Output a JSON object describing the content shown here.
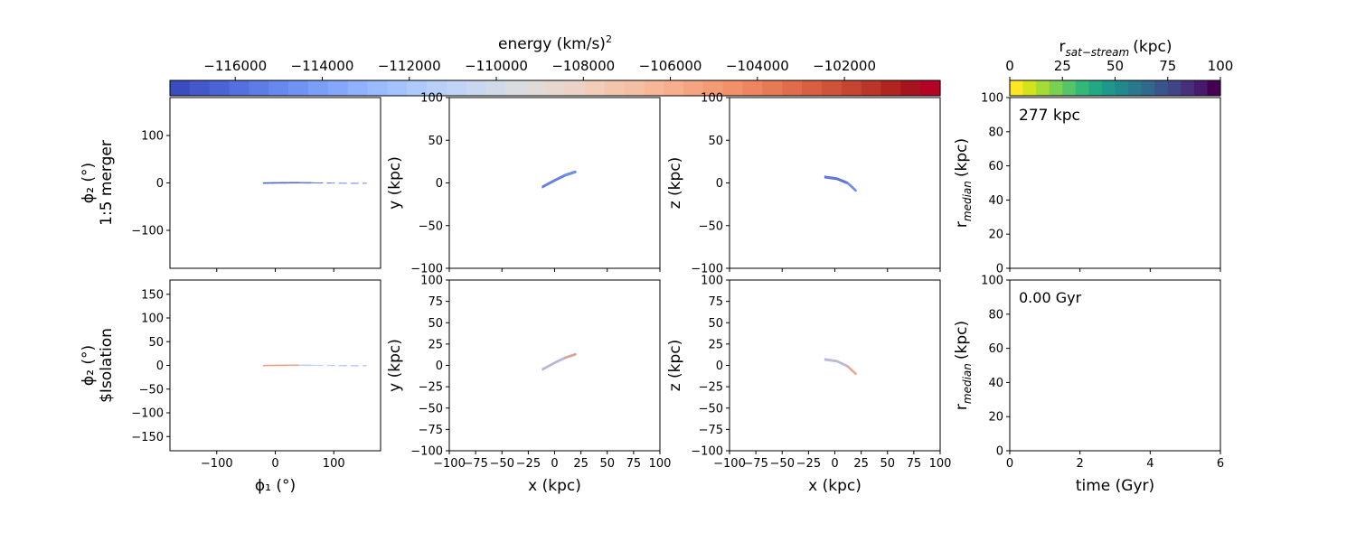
{
  "figure": {
    "panel_ylabels": {
      "top_row_group": "1:5 merger",
      "bottom_row_group": "$Isolation"
    }
  },
  "colorbars": {
    "energy": {
      "label": "energy (km/s)",
      "label_sup": "2",
      "range": [
        -117500,
        -99800
      ],
      "ticks": [
        -116000,
        -114000,
        -112000,
        -110000,
        -108000,
        -106000,
        -104000,
        -102000
      ],
      "tick_labels": [
        "−116000",
        "−114000",
        "−112000",
        "−110000",
        "−108000",
        "−106000",
        "−104000",
        "−102000"
      ],
      "colors": [
        "#3b4cc0",
        "#4358cb",
        "#4b64d5",
        "#5470de",
        "#5d7ce6",
        "#6788ee",
        "#7093f3",
        "#7b9ff9",
        "#84a7fc",
        "#8fb1fe",
        "#9abbff",
        "#a3c2fe",
        "#aec9fc",
        "#b7cff9",
        "#c0d4f5",
        "#c9d7f0",
        "#d1dae9",
        "#d9dce1",
        "#e0dbd8",
        "#e6d7cf",
        "#ecd3c5",
        "#f1cdba",
        "#f4c5ad",
        "#f5bfa3",
        "#f6b799",
        "#f6ae8d",
        "#f5a481",
        "#f39b74",
        "#f19069",
        "#ec8560",
        "#e67a55",
        "#e06c4b",
        "#d85f42",
        "#cf5339",
        "#c54530",
        "#bb3628",
        "#b1241f",
        "#a71420",
        "#b40426"
      ]
    },
    "distance": {
      "label": "r",
      "label_sub": "sat−stream",
      "label_unit": "(kpc)",
      "range": [
        0,
        100
      ],
      "ticks": [
        0,
        25,
        50,
        75,
        100
      ],
      "tick_labels": [
        "0",
        "25",
        "50",
        "75",
        "100"
      ],
      "colors": [
        "#fde725",
        "#d2e21b",
        "#a5db36",
        "#7ad151",
        "#54c568",
        "#35b779",
        "#22a884",
        "#1f988b",
        "#23888e",
        "#2a788e",
        "#31688e",
        "#39568c",
        "#414487",
        "#472f7d",
        "#481a6c",
        "#440154"
      ]
    }
  },
  "chart_data": [
    {
      "id": "sky_merger",
      "type": "scatter",
      "xlabel": "",
      "ylabel": "ϕ₂ (°)",
      "ylabel_extra": "1:5 merger",
      "xlim": [
        -180,
        180
      ],
      "ylim": [
        -180,
        180
      ],
      "xticks": [
        -100,
        0,
        100
      ],
      "yticks": [
        -100,
        0,
        100
      ],
      "show_xticklabels": false,
      "stream": {
        "kind": "sky",
        "x_range": [
          -20,
          150
        ],
        "colors": [
          "#4a63d3",
          "#5a78e4",
          "#6d8ff2"
        ]
      }
    },
    {
      "id": "xy_merger",
      "type": "scatter",
      "xlabel": "",
      "ylabel": "y (kpc)",
      "xlim": [
        -100,
        100
      ],
      "ylim": [
        -100,
        100
      ],
      "xticks": [
        -100,
        -50,
        0,
        50,
        100
      ],
      "yticks": [
        -100,
        -50,
        0,
        50,
        100
      ],
      "show_xticklabels": false,
      "stream": {
        "kind": "curve",
        "points": [
          [
            -12,
            -5
          ],
          [
            0,
            3
          ],
          [
            10,
            9
          ],
          [
            20,
            13
          ]
        ],
        "colors": [
          "#4a63d3",
          "#6d8ff2"
        ]
      }
    },
    {
      "id": "xz_merger",
      "type": "scatter",
      "xlabel": "",
      "ylabel": "z (kpc)",
      "xlim": [
        -100,
        100
      ],
      "ylim": [
        -100,
        100
      ],
      "xticks": [
        -100,
        -50,
        0,
        50,
        100
      ],
      "yticks": [
        -100,
        -50,
        0,
        50,
        100
      ],
      "show_xticklabels": false,
      "stream": {
        "kind": "curve",
        "points": [
          [
            -10,
            7
          ],
          [
            2,
            5
          ],
          [
            12,
            0
          ],
          [
            20,
            -9
          ]
        ],
        "colors": [
          "#3b4cc0",
          "#6d8ff2"
        ]
      }
    },
    {
      "id": "rmed_merger",
      "type": "line",
      "xlabel": "",
      "ylabel": "r",
      "ylabel_sub": "median",
      "ylabel_unit": "(kpc)",
      "xlim": [
        0,
        6
      ],
      "ylim": [
        0,
        100
      ],
      "xticks": [
        0,
        2,
        4,
        6
      ],
      "yticks": [
        0,
        20,
        40,
        60,
        80,
        100
      ],
      "show_xticklabels": false,
      "annotation": "277 kpc",
      "series": []
    },
    {
      "id": "sky_isolation",
      "type": "scatter",
      "xlabel": "ϕ₁ (°)",
      "ylabel": "ϕ₂ (°)",
      "ylabel_extra": "$Isolation",
      "xlim": [
        -180,
        180
      ],
      "ylim": [
        -180,
        180
      ],
      "xticks": [
        -100,
        0,
        100
      ],
      "yticks": [
        -150,
        -100,
        -50,
        0,
        50,
        100,
        150
      ],
      "show_xticklabels": true,
      "stream": {
        "kind": "sky",
        "x_range": [
          -20,
          150
        ],
        "colors": [
          "#e8a080",
          "#b7cff9",
          "#9abbff"
        ]
      }
    },
    {
      "id": "xy_isolation",
      "type": "scatter",
      "xlabel": "x (kpc)",
      "ylabel": "y (kpc)",
      "xlim": [
        -100,
        100
      ],
      "ylim": [
        -100,
        100
      ],
      "xticks": [
        -100,
        -75,
        -50,
        -25,
        0,
        25,
        50,
        75,
        100
      ],
      "yticks": [
        -100,
        -75,
        -50,
        -25,
        0,
        25,
        50,
        75,
        100
      ],
      "show_xticklabels": true,
      "stream": {
        "kind": "curve",
        "points": [
          [
            -12,
            -5
          ],
          [
            0,
            3
          ],
          [
            10,
            9
          ],
          [
            20,
            13
          ]
        ],
        "colors": [
          "#9abbff",
          "#e8a080"
        ]
      }
    },
    {
      "id": "xz_isolation",
      "type": "scatter",
      "xlabel": "x (kpc)",
      "ylabel": "z (kpc)",
      "xlim": [
        -100,
        100
      ],
      "ylim": [
        -100,
        100
      ],
      "xticks": [
        -100,
        -75,
        -50,
        -25,
        0,
        25,
        50,
        75,
        100
      ],
      "yticks": [
        -100,
        -75,
        -50,
        -25,
        0,
        25,
        50,
        75,
        100
      ],
      "show_xticklabels": true,
      "stream": {
        "kind": "curve",
        "points": [
          [
            -10,
            7
          ],
          [
            2,
            5
          ],
          [
            12,
            -1
          ],
          [
            20,
            -10
          ]
        ],
        "colors": [
          "#9abbff",
          "#f0a586"
        ]
      }
    },
    {
      "id": "rmed_isolation",
      "type": "line",
      "xlabel": "time (Gyr)",
      "ylabel": "r",
      "ylabel_sub": "median",
      "ylabel_unit": "(kpc)",
      "xlim": [
        0,
        6
      ],
      "ylim": [
        0,
        100
      ],
      "xticks": [
        0,
        2,
        4,
        6
      ],
      "yticks": [
        0,
        20,
        40,
        60,
        80,
        100
      ],
      "show_xticklabels": true,
      "annotation": "0.00 Gyr",
      "series": []
    }
  ]
}
